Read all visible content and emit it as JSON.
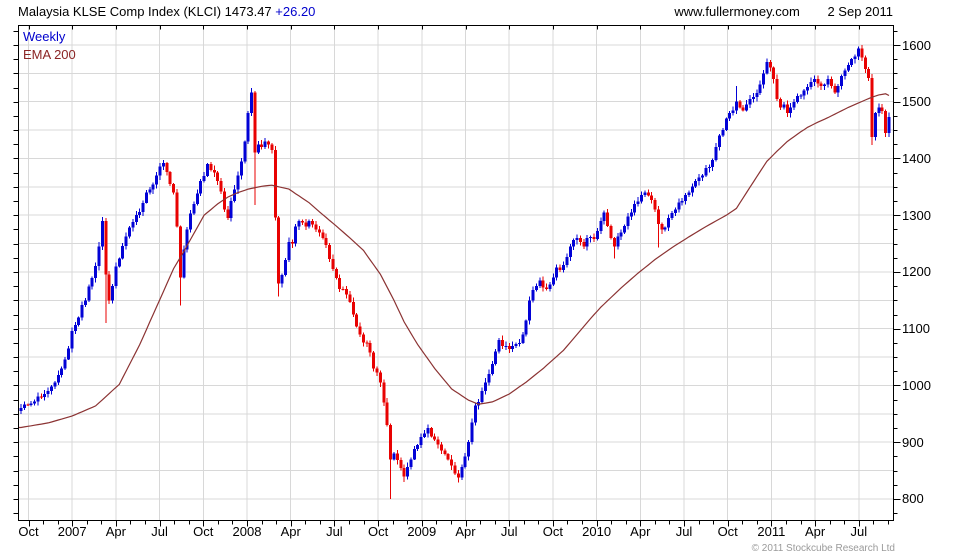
{
  "header": {
    "title": "Malaysia KLSE Comp Index (KLCI)",
    "last": "1473.47",
    "change": "+26.20",
    "site": "www.fullermoney.com",
    "date": "2 Sep 2011"
  },
  "legend": {
    "timeframe": "Weekly",
    "overlay": "EMA 200"
  },
  "footer": {
    "copyright": "© 2011 Stockcube Research Ltd"
  },
  "colors": {
    "up": "#0202d6",
    "down": "#e80202",
    "ema": "#8b3333",
    "grid": "#d8d8d8",
    "frame": "#000000",
    "change_text": "#0000cd",
    "weekly_text": "#0000cd",
    "ema_text": "#8b2525",
    "copyright_text": "#9a9a9a",
    "background": "#ffffff"
  },
  "chart_data": {
    "type": "candlestick",
    "title": "Malaysia KLSE Comp Index (KLCI)",
    "timeframe": "Weekly",
    "last_close": 1473.47,
    "change": 26.2,
    "y_axis": {
      "labels": [
        800,
        900,
        1000,
        1100,
        1200,
        1300,
        1400,
        1500,
        1600
      ],
      "min": 763,
      "max": 1635,
      "grid_step": 50,
      "minor_tick_step": 25,
      "side": "right"
    },
    "x_axis": {
      "quarter_labels": [
        "Oct",
        "2007",
        "Apr",
        "Jul",
        "Oct",
        "2008",
        "Apr",
        "Jul",
        "Oct",
        "2009",
        "Apr",
        "Jul",
        "Oct",
        "2010",
        "Apr",
        "Jul",
        "Oct",
        "2011",
        "Apr",
        "Jul"
      ],
      "minor_tick": "monthly",
      "grid": "quarterly"
    },
    "weeks": 257,
    "close_anchors": [
      [
        0,
        960
      ],
      [
        2,
        966
      ],
      [
        4,
        972
      ],
      [
        6,
        980
      ],
      [
        8,
        990
      ],
      [
        10,
        1005
      ],
      [
        12,
        1030
      ],
      [
        14,
        1065
      ],
      [
        15,
        1096
      ],
      [
        17,
        1120
      ],
      [
        19,
        1150
      ],
      [
        21,
        1189
      ],
      [
        23,
        1245
      ],
      [
        24,
        1290
      ],
      [
        25,
        1196
      ],
      [
        26,
        1150
      ],
      [
        27,
        1175
      ],
      [
        28,
        1210
      ],
      [
        30,
        1246
      ],
      [
        32,
        1278
      ],
      [
        34,
        1300
      ],
      [
        36,
        1322
      ],
      [
        38,
        1345
      ],
      [
        40,
        1370
      ],
      [
        42,
        1392
      ],
      [
        43,
        1376
      ],
      [
        44,
        1355
      ],
      [
        45,
        1340
      ],
      [
        46,
        1280
      ],
      [
        47,
        1190
      ],
      [
        48,
        1240
      ],
      [
        49,
        1275
      ],
      [
        51,
        1320
      ],
      [
        53,
        1360
      ],
      [
        55,
        1390
      ],
      [
        57,
        1375
      ],
      [
        59,
        1342
      ],
      [
        60,
        1310
      ],
      [
        61,
        1295
      ],
      [
        62,
        1325
      ],
      [
        63,
        1345
      ],
      [
        64,
        1370
      ],
      [
        65,
        1395
      ],
      [
        66,
        1430
      ],
      [
        67,
        1480
      ],
      [
        68,
        1516
      ],
      [
        69,
        1411
      ],
      [
        70,
        1425
      ],
      [
        71,
        1420
      ],
      [
        72,
        1430
      ],
      [
        73,
        1425
      ],
      [
        74,
        1415
      ],
      [
        75,
        1296
      ],
      [
        76,
        1180
      ],
      [
        77,
        1195
      ],
      [
        78,
        1221
      ],
      [
        79,
        1253
      ],
      [
        80,
        1250
      ],
      [
        81,
        1280
      ],
      [
        82,
        1290
      ],
      [
        84,
        1280
      ],
      [
        85,
        1290
      ],
      [
        87,
        1275
      ],
      [
        88,
        1270
      ],
      [
        90,
        1248
      ],
      [
        92,
        1205
      ],
      [
        94,
        1170
      ],
      [
        96,
        1160
      ],
      [
        98,
        1125
      ],
      [
        100,
        1090
      ],
      [
        102,
        1075
      ],
      [
        104,
        1030
      ],
      [
        106,
        1005
      ],
      [
        107,
        970
      ],
      [
        108,
        930
      ],
      [
        109,
        870
      ],
      [
        110,
        880
      ],
      [
        112,
        855
      ],
      [
        113,
        840
      ],
      [
        115,
        870
      ],
      [
        117,
        895
      ],
      [
        119,
        915
      ],
      [
        120,
        925
      ],
      [
        122,
        905
      ],
      [
        124,
        885
      ],
      [
        126,
        870
      ],
      [
        128,
        845
      ],
      [
        129,
        838
      ],
      [
        130,
        856
      ],
      [
        131,
        875
      ],
      [
        132,
        900
      ],
      [
        133,
        935
      ],
      [
        134,
        965
      ],
      [
        136,
        990
      ],
      [
        138,
        1020
      ],
      [
        140,
        1060
      ],
      [
        141,
        1080
      ],
      [
        143,
        1070
      ],
      [
        145,
        1070
      ],
      [
        147,
        1075
      ],
      [
        148,
        1090
      ],
      [
        150,
        1150
      ],
      [
        152,
        1175
      ],
      [
        153,
        1185
      ],
      [
        155,
        1170
      ],
      [
        157,
        1190
      ],
      [
        158,
        1208
      ],
      [
        160,
        1212
      ],
      [
        162,
        1245
      ],
      [
        164,
        1260
      ],
      [
        166,
        1245
      ],
      [
        168,
        1262
      ],
      [
        169,
        1258
      ],
      [
        170,
        1272
      ],
      [
        171,
        1290
      ],
      [
        172,
        1305
      ],
      [
        174,
        1260
      ],
      [
        175,
        1245
      ],
      [
        177,
        1270
      ],
      [
        179,
        1298
      ],
      [
        181,
        1320
      ],
      [
        183,
        1336
      ],
      [
        184,
        1340
      ],
      [
        185,
        1335
      ],
      [
        187,
        1310
      ],
      [
        188,
        1285
      ],
      [
        189,
        1275
      ],
      [
        191,
        1295
      ],
      [
        193,
        1310
      ],
      [
        195,
        1325
      ],
      [
        197,
        1340
      ],
      [
        199,
        1360
      ],
      [
        201,
        1370
      ],
      [
        203,
        1385
      ],
      [
        205,
        1420
      ],
      [
        207,
        1450
      ],
      [
        209,
        1480
      ],
      [
        211,
        1500
      ],
      [
        212,
        1490
      ],
      [
        213,
        1485
      ],
      [
        215,
        1505
      ],
      [
        217,
        1515
      ],
      [
        218,
        1530
      ],
      [
        219,
        1550
      ],
      [
        220,
        1570
      ],
      [
        221,
        1560
      ],
      [
        222,
        1540
      ],
      [
        223,
        1505
      ],
      [
        224,
        1490
      ],
      [
        225,
        1495
      ],
      [
        226,
        1480
      ],
      [
        227,
        1490
      ],
      [
        229,
        1510
      ],
      [
        231,
        1520
      ],
      [
        233,
        1535
      ],
      [
        234,
        1540
      ],
      [
        235,
        1532
      ],
      [
        236,
        1528
      ],
      [
        238,
        1540
      ],
      [
        239,
        1528
      ],
      [
        240,
        1516
      ],
      [
        241,
        1528
      ],
      [
        242,
        1545
      ],
      [
        243,
        1555
      ],
      [
        244,
        1565
      ],
      [
        245,
        1575
      ],
      [
        246,
        1580
      ],
      [
        247,
        1594
      ],
      [
        248,
        1578
      ],
      [
        249,
        1558
      ],
      [
        250,
        1542
      ],
      [
        251,
        1438
      ],
      [
        252,
        1480
      ],
      [
        253,
        1490
      ],
      [
        254,
        1484
      ],
      [
        255,
        1445
      ],
      [
        256,
        1473
      ]
    ],
    "wick_low_overrides": [
      [
        25,
        1110
      ],
      [
        47,
        1141
      ],
      [
        69,
        1318
      ],
      [
        76,
        1157
      ],
      [
        109,
        800
      ],
      [
        113,
        830
      ],
      [
        129,
        829
      ],
      [
        175,
        1224
      ],
      [
        188,
        1243
      ],
      [
        251,
        1424
      ]
    ],
    "wick_high_overrides": [
      [
        24,
        1297
      ],
      [
        42,
        1397
      ],
      [
        68,
        1524
      ],
      [
        211,
        1528
      ],
      [
        220,
        1576
      ],
      [
        234,
        1546
      ],
      [
        247,
        1597
      ]
    ],
    "ema_anchors": [
      [
        0,
        926
      ],
      [
        8,
        934
      ],
      [
        15,
        946
      ],
      [
        22,
        964
      ],
      [
        29,
        1002
      ],
      [
        35,
        1072
      ],
      [
        41,
        1152
      ],
      [
        45,
        1206
      ],
      [
        48,
        1236
      ],
      [
        54,
        1300
      ],
      [
        58,
        1320
      ],
      [
        61,
        1332
      ],
      [
        64,
        1340
      ],
      [
        67,
        1346
      ],
      [
        71,
        1351
      ],
      [
        74,
        1353
      ],
      [
        79,
        1346
      ],
      [
        85,
        1322
      ],
      [
        88,
        1306
      ],
      [
        92,
        1286
      ],
      [
        97,
        1260
      ],
      [
        101,
        1238
      ],
      [
        106,
        1196
      ],
      [
        110,
        1150
      ],
      [
        113,
        1112
      ],
      [
        117,
        1072
      ],
      [
        122,
        1030
      ],
      [
        127,
        994
      ],
      [
        132,
        974
      ],
      [
        135,
        967
      ],
      [
        139,
        971
      ],
      [
        144,
        985
      ],
      [
        149,
        1006
      ],
      [
        154,
        1030
      ],
      [
        160,
        1062
      ],
      [
        164,
        1090
      ],
      [
        168,
        1118
      ],
      [
        171,
        1138
      ],
      [
        174,
        1155
      ],
      [
        177,
        1172
      ],
      [
        182,
        1198
      ],
      [
        187,
        1222
      ],
      [
        192,
        1243
      ],
      [
        197,
        1262
      ],
      [
        202,
        1280
      ],
      [
        205,
        1290
      ],
      [
        208,
        1300
      ],
      [
        211,
        1312
      ],
      [
        214,
        1340
      ],
      [
        217,
        1368
      ],
      [
        220,
        1395
      ],
      [
        223,
        1413
      ],
      [
        226,
        1430
      ],
      [
        229,
        1443
      ],
      [
        232,
        1455
      ],
      [
        235,
        1464
      ],
      [
        238,
        1472
      ],
      [
        241,
        1481
      ],
      [
        244,
        1490
      ],
      [
        247,
        1498
      ],
      [
        249,
        1503
      ],
      [
        251,
        1508
      ],
      [
        253,
        1512
      ],
      [
        255,
        1514
      ],
      [
        256,
        1511
      ]
    ]
  },
  "render": {
    "noise_amp": 7,
    "wick_amp": 8
  }
}
